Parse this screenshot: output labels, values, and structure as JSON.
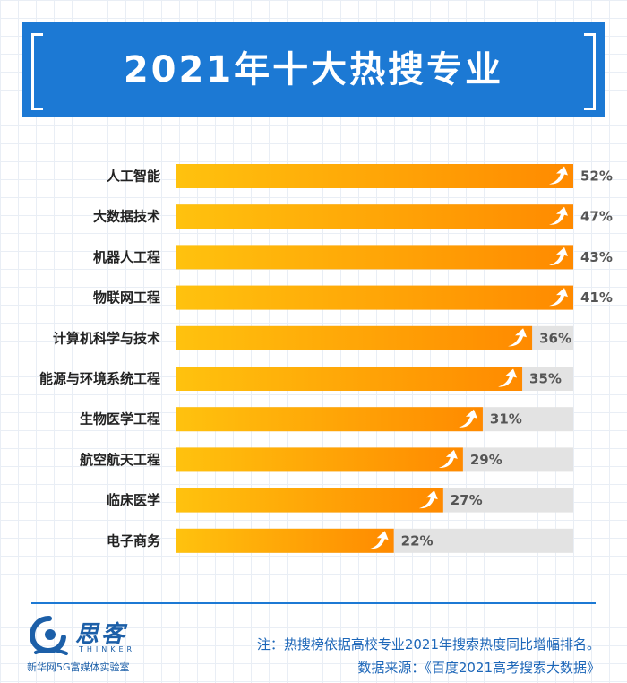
{
  "header": {
    "title": "2021年十大热搜专业"
  },
  "chart_data": {
    "type": "bar",
    "orientation": "horizontal",
    "title": "2021年十大热搜专业",
    "categories": [
      "人工智能",
      "大数据技术",
      "机器人工程",
      "物联网工程",
      "计算机科学与技术",
      "能源与环境系统工程",
      "生物医学工程",
      "航空航天工程",
      "临床医学",
      "电子商务"
    ],
    "values": [
      52,
      47,
      43,
      41,
      36,
      35,
      31,
      29,
      27,
      22
    ],
    "value_labels": [
      "52%",
      "47%",
      "43%",
      "41%",
      "36%",
      "35%",
      "31%",
      "29%",
      "27%",
      "22%"
    ],
    "xlim": [
      0,
      60
    ],
    "unit": "%",
    "grid": false,
    "legend": "none"
  },
  "colors": {
    "header_bg": "#1c79d4",
    "bar_start": "#ffc20e",
    "bar_end": "#ff8a00",
    "track": "#e3e3e3"
  },
  "footer": {
    "logo_name": "思客",
    "logo_sub": "THINKER",
    "logo_org": "新华网5G富媒体实验室",
    "note": "注：热搜榜依据高校专业2021年搜索热度同比增幅排名。",
    "source": "数据来源：《百度2021高考搜索大数据》"
  }
}
